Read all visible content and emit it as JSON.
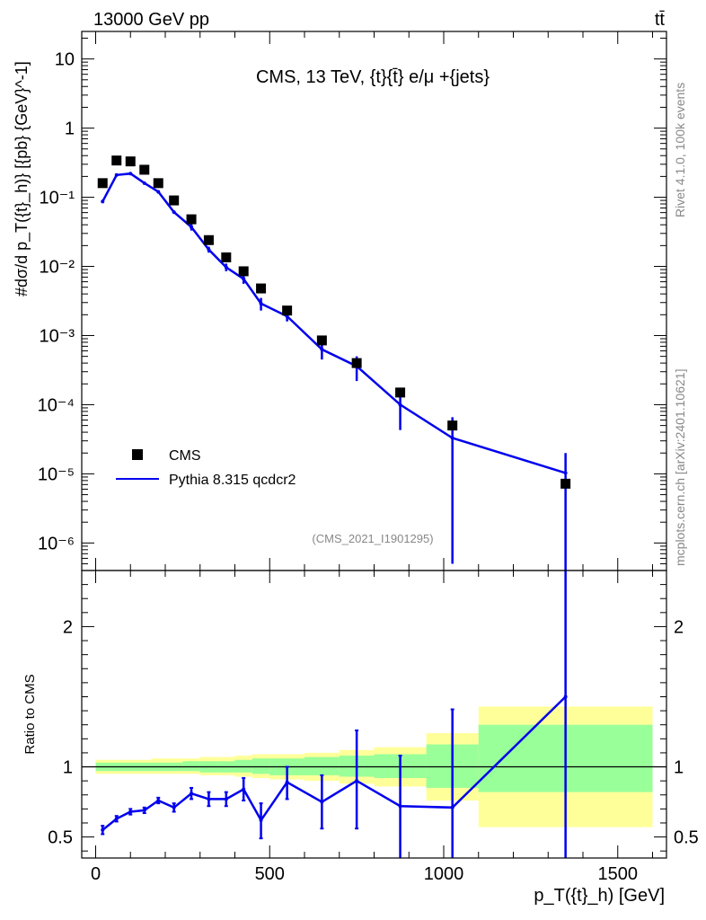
{
  "header": {
    "left": "13000 GeV pp",
    "right": "tt̄"
  },
  "side_labels": {
    "rivet": "Rivet 4.1.0,  100k events",
    "mcplots": "mcplots.cern.ch [arXiv:2401.10621]"
  },
  "colors": {
    "mc": "#0000ee",
    "data": "#000000",
    "band_outer": "#ffff99",
    "band_inner": "#99ff99",
    "text_gray": "#888888"
  },
  "chart_data": [
    {
      "type": "scatter",
      "panel": "main",
      "title": "CMS, 13 TeV, {t}{t̄} e/μ +{jets}",
      "analysis_id": "(CMS_2021_I1901295)",
      "ylabel": "#dσ/d p_T({t}_h)} [{pb} {GeV}^-1]",
      "xlabel": "p_T({t}_h) [GeV]",
      "yscale": "log",
      "xlim": [
        -40,
        1640
      ],
      "ylim": [
        4e-07,
        25
      ],
      "y_ticks": [
        {
          "value": 10,
          "label": "10"
        },
        {
          "value": 1,
          "label": "1"
        },
        {
          "value": 0.1,
          "label": "10⁻¹"
        },
        {
          "value": 0.01,
          "label": "10⁻²"
        },
        {
          "value": 0.001,
          "label": "10⁻³"
        },
        {
          "value": 0.0001,
          "label": "10⁻⁴"
        },
        {
          "value": 1e-05,
          "label": "10⁻⁵"
        },
        {
          "value": 1e-06,
          "label": "10⁻⁶"
        }
      ],
      "legend": {
        "position": "lower-left",
        "entries": [
          "CMS",
          "Pythia 8.315 qcdcr2"
        ]
      },
      "series": [
        {
          "name": "CMS",
          "style": "markers",
          "x": [
            20,
            60,
            100,
            140,
            180,
            225,
            275,
            325,
            375,
            425,
            475,
            550,
            650,
            750,
            875,
            1025,
            1350
          ],
          "y": [
            0.16,
            0.34,
            0.33,
            0.25,
            0.16,
            0.09,
            0.048,
            0.024,
            0.0135,
            0.0085,
            0.0048,
            0.0023,
            0.00085,
            0.0004,
            0.00015,
            5e-05,
            7.2e-06
          ]
        },
        {
          "name": "Pythia 8.315 qcdcr2",
          "style": "line",
          "x": [
            20,
            60,
            100,
            140,
            180,
            225,
            275,
            325,
            375,
            425,
            475,
            550,
            650,
            750,
            875,
            1025,
            1350
          ],
          "y": [
            0.087,
            0.21,
            0.22,
            0.16,
            0.12,
            0.061,
            0.037,
            0.0175,
            0.0097,
            0.0066,
            0.0029,
            0.0019,
            0.00063,
            0.00036,
            0.0001,
            3.3e-05,
            1.03e-05
          ],
          "err_lo": [
            0.082,
            0.2,
            0.21,
            0.153,
            0.113,
            0.058,
            0.033,
            0.0158,
            0.0085,
            0.0056,
            0.0023,
            0.0016,
            0.00045,
            0.00022,
            4.3e-05,
            5e-07,
            3e-07
          ],
          "err_hi": [
            0.092,
            0.22,
            0.23,
            0.168,
            0.127,
            0.064,
            0.041,
            0.0193,
            0.011,
            0.0077,
            0.0035,
            0.0022,
            0.00083,
            0.0005,
            0.00016,
            6.6e-05,
            2e-05
          ]
        }
      ]
    },
    {
      "type": "line",
      "panel": "ratio",
      "ylabel": "Ratio to CMS",
      "xlabel": "p_T({t}_h) [GeV]",
      "xlim": [
        -40,
        1640
      ],
      "ylim": [
        0.35,
        2.4
      ],
      "x_ticks": [
        {
          "value": 0,
          "label": "0"
        },
        {
          "value": 500,
          "label": "500"
        },
        {
          "value": 1000,
          "label": "1000"
        },
        {
          "value": 1500,
          "label": "1500"
        }
      ],
      "y_ticks": [
        {
          "value": 0.5,
          "label": "0.5"
        },
        {
          "value": 1,
          "label": "1"
        },
        {
          "value": 2,
          "label": "2"
        }
      ],
      "bins": [
        0,
        40,
        80,
        120,
        160,
        200,
        250,
        300,
        350,
        400,
        450,
        500,
        600,
        700,
        800,
        950,
        1100,
        1600
      ],
      "band_outer": {
        "lo": [
          0.95,
          0.95,
          0.95,
          0.95,
          0.95,
          0.95,
          0.95,
          0.94,
          0.94,
          0.93,
          0.92,
          0.91,
          0.9,
          0.88,
          0.86,
          0.76,
          0.57
        ],
        "hi": [
          1.05,
          1.05,
          1.05,
          1.05,
          1.06,
          1.06,
          1.06,
          1.07,
          1.07,
          1.08,
          1.09,
          1.09,
          1.1,
          1.12,
          1.14,
          1.24,
          1.43
        ]
      },
      "band_inner": {
        "lo": [
          0.97,
          0.97,
          0.97,
          0.97,
          0.97,
          0.97,
          0.97,
          0.96,
          0.96,
          0.96,
          0.95,
          0.94,
          0.94,
          0.93,
          0.92,
          0.85,
          0.82
        ],
        "hi": [
          1.03,
          1.03,
          1.03,
          1.03,
          1.03,
          1.03,
          1.04,
          1.04,
          1.04,
          1.05,
          1.06,
          1.06,
          1.07,
          1.08,
          1.09,
          1.16,
          1.3
        ]
      },
      "series": [
        {
          "name": "Pythia 8.315 qcdcr2 / CMS",
          "x": [
            20,
            60,
            100,
            140,
            180,
            225,
            275,
            325,
            375,
            425,
            475,
            550,
            650,
            750,
            875,
            1025,
            1350
          ],
          "y": [
            0.55,
            0.63,
            0.68,
            0.69,
            0.76,
            0.71,
            0.81,
            0.77,
            0.77,
            0.84,
            0.62,
            0.89,
            0.75,
            0.9,
            0.72,
            0.71,
            1.5
          ],
          "err_lo": [
            0.52,
            0.61,
            0.66,
            0.67,
            0.74,
            0.68,
            0.77,
            0.72,
            0.72,
            0.76,
            0.49,
            0.77,
            0.56,
            0.56,
            0.35,
            0.35,
            0.35
          ],
          "err_hi": [
            0.58,
            0.65,
            0.7,
            0.71,
            0.78,
            0.74,
            0.85,
            0.82,
            0.82,
            0.92,
            0.74,
            1.0,
            0.94,
            1.26,
            1.08,
            1.41,
            2.4
          ]
        }
      ]
    }
  ]
}
